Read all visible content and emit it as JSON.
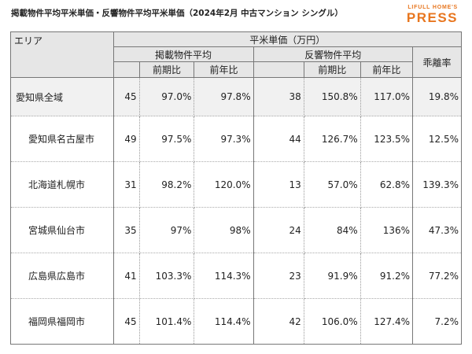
{
  "caption": "掲載物件平均平米単価・反響物件平均平米単価（2024年2月 中古マンション シングル）",
  "logo": {
    "top": "LIFULL HOME'S",
    "bottom": "PRESS"
  },
  "table": {
    "area_header": "エリア",
    "unit_header": "平米単価（万円）",
    "listed_header": "掲載物件平均",
    "response_header": "反響物件平均",
    "divergence_header": "乖離率",
    "prev_month_header": "前期比",
    "prev_year_header": "前年比",
    "rows": [
      {
        "area": "愛知県全域",
        "l_val": "45",
        "l_mom": "97.0%",
        "l_yoy": "97.8%",
        "r_val": "38",
        "r_mom": "150.8%",
        "r_yoy": "117.0%",
        "div": "19.8%"
      },
      {
        "area": "愛知県名古屋市",
        "l_val": "49",
        "l_mom": "97.5%",
        "l_yoy": "97.3%",
        "r_val": "44",
        "r_mom": "126.7%",
        "r_yoy": "123.5%",
        "div": "12.5%"
      },
      {
        "area": "北海道札幌市",
        "l_val": "31",
        "l_mom": "98.2%",
        "l_yoy": "120.0%",
        "r_val": "13",
        "r_mom": "57.0%",
        "r_yoy": "62.8%",
        "div": "139.3%"
      },
      {
        "area": "宮城県仙台市",
        "l_val": "35",
        "l_mom": "97%",
        "l_yoy": "98%",
        "r_val": "24",
        "r_mom": "84%",
        "r_yoy": "136%",
        "div": "47.3%"
      },
      {
        "area": "広島県広島市",
        "l_val": "41",
        "l_mom": "103.3%",
        "l_yoy": "114.3%",
        "r_val": "23",
        "r_mom": "91.9%",
        "r_yoy": "91.2%",
        "div": "77.2%"
      },
      {
        "area": "福岡県福岡市",
        "l_val": "45",
        "l_mom": "101.4%",
        "l_yoy": "114.4%",
        "r_val": "42",
        "r_mom": "106.0%",
        "r_yoy": "127.4%",
        "div": "7.2%"
      }
    ]
  }
}
